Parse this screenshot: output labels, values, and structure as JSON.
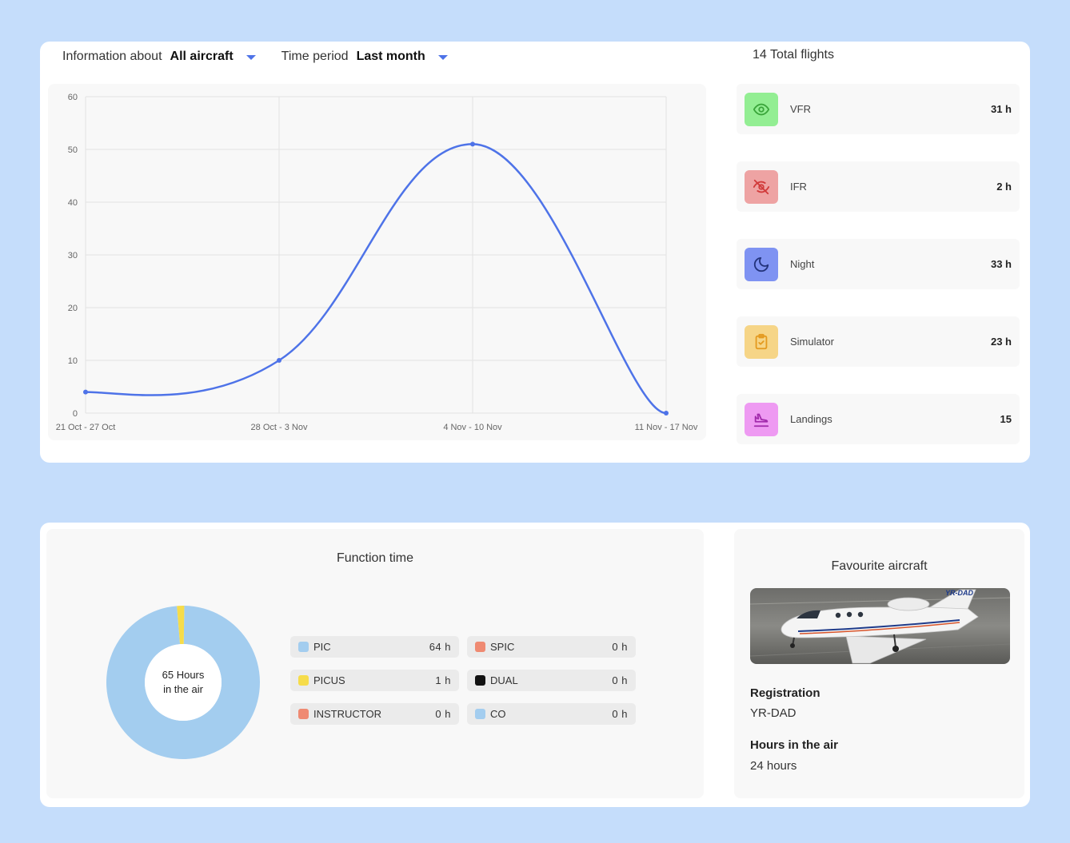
{
  "filters": {
    "aircraft": {
      "label": "Information about",
      "value": "All aircraft"
    },
    "period": {
      "label": "Time period",
      "value": "Last month"
    }
  },
  "total_flights": "14 Total flights",
  "chart_data": {
    "type": "line",
    "categories": [
      "21 Oct - 27 Oct",
      "28 Oct - 3 Nov",
      "4 Nov - 10 Nov",
      "11 Nov - 17 Nov"
    ],
    "values": [
      4,
      10,
      51,
      0
    ],
    "ylim": [
      0,
      60
    ],
    "yticks": [
      0,
      10,
      20,
      30,
      40,
      50,
      60
    ],
    "grid": true,
    "smooth": true,
    "color": "#4e73e8"
  },
  "stats": [
    {
      "name": "VFR",
      "value": "31 h",
      "icon": "eye-icon",
      "bg": "#93ee93",
      "fg": "#3aa53a"
    },
    {
      "name": "IFR",
      "value": "2 h",
      "icon": "eye-off-icon",
      "bg": "#eea3a3",
      "fg": "#d13a3a"
    },
    {
      "name": "Night",
      "value": "33 h",
      "icon": "moon-icon",
      "bg": "#7f93f2",
      "fg": "#24347c"
    },
    {
      "name": "Simulator",
      "value": "23 h",
      "icon": "clipboard-check-icon",
      "bg": "#f6d587",
      "fg": "#e49a20"
    },
    {
      "name": "Landings",
      "value": "15",
      "icon": "plane-landing-icon",
      "bg": "#ee9af2",
      "fg": "#a22aac"
    }
  ],
  "function_time": {
    "title": "Function time",
    "center_line1": "65 Hours",
    "center_line2": "in the air",
    "items": [
      {
        "name": "PIC",
        "value": "64 h",
        "hours": 64,
        "color": "#a3cdef"
      },
      {
        "name": "SPIC",
        "value": "0 h",
        "hours": 0,
        "color": "#ef8a72"
      },
      {
        "name": "PICUS",
        "value": "1 h",
        "hours": 1,
        "color": "#f6dc4a"
      },
      {
        "name": "DUAL",
        "value": "0 h",
        "hours": 0,
        "color": "#111111"
      },
      {
        "name": "INSTRUCTOR",
        "value": "0 h",
        "hours": 0,
        "color": "#ef8a72"
      },
      {
        "name": "CO",
        "value": "0 h",
        "hours": 0,
        "color": "#a3cdef"
      }
    ]
  },
  "favourite": {
    "title": "Favourite aircraft",
    "registration_label": "Registration",
    "registration": "YR-DAD",
    "hours_label": "Hours in the air",
    "hours": "24 hours",
    "tail_marking": "YR-DAD"
  }
}
